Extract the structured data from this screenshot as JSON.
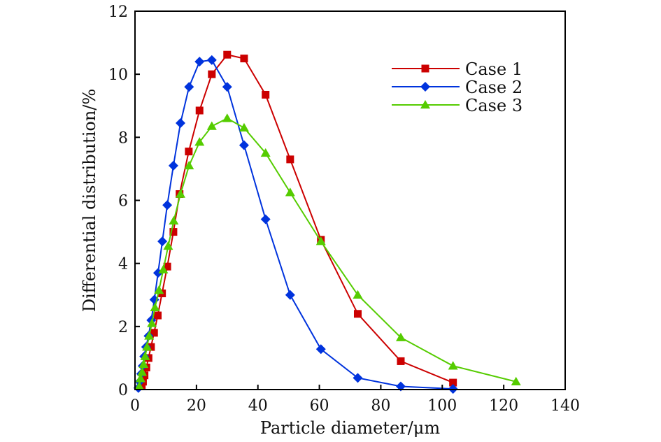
{
  "chart_data": {
    "type": "line",
    "title": "",
    "xlabel": "Particle diameter/μm",
    "ylabel": "Differential distribution/%",
    "xlim": [
      0,
      140
    ],
    "ylim": [
      0,
      12
    ],
    "xticks": [
      "0",
      "20",
      "40",
      "60",
      "80",
      "100",
      "120",
      "140"
    ],
    "xtick_values": [
      0,
      20,
      40,
      60,
      80,
      100,
      120,
      140
    ],
    "yticks": [
      "0",
      "2",
      "4",
      "6",
      "8",
      "10",
      "12"
    ],
    "ytick_values": [
      0,
      2,
      4,
      6,
      8,
      10,
      12
    ],
    "grid": false,
    "legend_position": "top-right",
    "series": [
      {
        "name": "Case 1",
        "color": "#cc0000",
        "marker": "square",
        "x": [
          2.2,
          2.6,
          3.1,
          3.7,
          4.4,
          5.2,
          6.2,
          7.4,
          8.8,
          10.5,
          12.5,
          14.5,
          17.5,
          21,
          25,
          30,
          35.5,
          42.5,
          50.5,
          60.5,
          72.5,
          86.5,
          103.5
        ],
        "y": [
          0.1,
          0.25,
          0.45,
          0.7,
          1.0,
          1.35,
          1.8,
          2.35,
          3.05,
          3.9,
          5.0,
          6.2,
          7.55,
          8.85,
          10.0,
          10.62,
          10.5,
          9.35,
          7.3,
          4.75,
          2.4,
          0.9,
          0.22
        ]
      },
      {
        "name": "Case 2",
        "color": "#0033dd",
        "marker": "diamond",
        "x": [
          1.1,
          1.5,
          2.0,
          2.5,
          3.0,
          3.6,
          4.4,
          5.3,
          6.3,
          7.5,
          8.9,
          10.5,
          12.5,
          14.8,
          17.6,
          21,
          25,
          30,
          35.5,
          42.5,
          50.5,
          60.5,
          72.5,
          86.5,
          103.5
        ],
        "y": [
          0.05,
          0.25,
          0.5,
          0.75,
          1.05,
          1.35,
          1.7,
          2.2,
          2.85,
          3.7,
          4.7,
          5.85,
          7.1,
          8.45,
          9.6,
          10.4,
          10.45,
          9.6,
          7.75,
          5.4,
          3.0,
          1.28,
          0.37,
          0.1,
          0.02
        ]
      },
      {
        "name": "Case 3",
        "color": "#55cc00",
        "marker": "triangle",
        "x": [
          1.4,
          1.8,
          2.3,
          2.8,
          3.3,
          3.9,
          4.6,
          5.5,
          6.5,
          7.8,
          9.2,
          10.8,
          12.6,
          14.8,
          17.6,
          21,
          25,
          30,
          35.5,
          42.5,
          50.5,
          60.5,
          72.5,
          86.5,
          103.5,
          124
        ],
        "y": [
          0.1,
          0.35,
          0.55,
          0.8,
          1.05,
          1.35,
          1.7,
          2.1,
          2.6,
          3.15,
          3.8,
          4.55,
          5.35,
          6.2,
          7.1,
          7.85,
          8.35,
          8.6,
          8.3,
          7.5,
          6.25,
          4.7,
          3.0,
          1.65,
          0.75,
          0.25
        ]
      }
    ]
  }
}
